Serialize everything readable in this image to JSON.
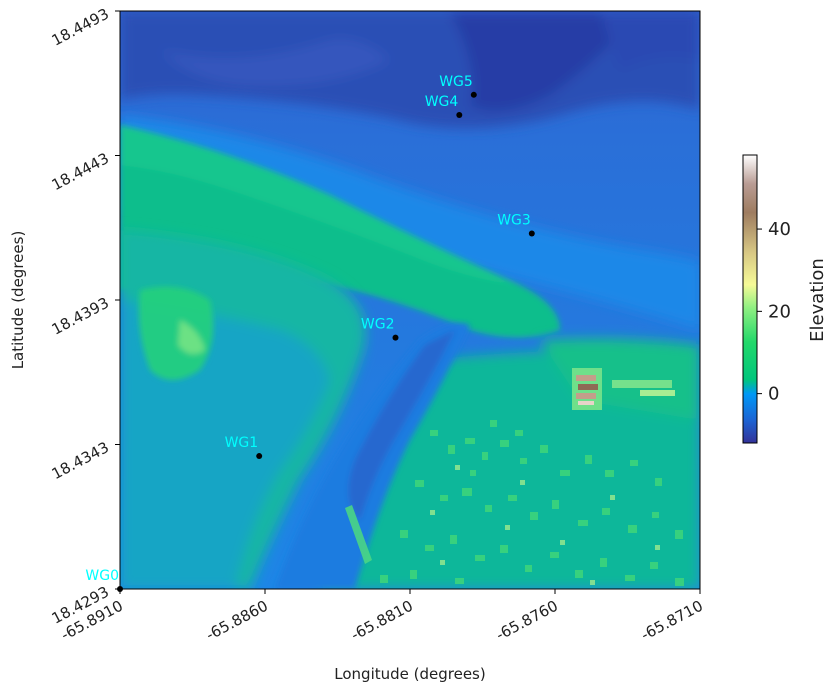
{
  "chart_data": {
    "type": "heatmap",
    "title": "",
    "xlabel": "Longitude (degrees)",
    "ylabel": "Latitude (degrees)",
    "xlim": [
      -65.891,
      -65.871
    ],
    "ylim": [
      18.4293,
      18.4493
    ],
    "x_ticks": [
      -65.891,
      -65.886,
      -65.881,
      -65.876,
      -65.871
    ],
    "y_ticks": [
      18.4293,
      18.4343,
      18.4393,
      18.4443,
      18.4493
    ],
    "x_tick_labels": [
      "-65.8910",
      "-65.8860",
      "-65.8810",
      "-65.8760",
      "-65.8710"
    ],
    "y_tick_labels": [
      "18.4293",
      "18.4343",
      "18.4393",
      "18.4443",
      "18.4493"
    ],
    "colorbar": {
      "label": "Elevation",
      "range": [
        -12,
        58
      ],
      "ticks": [
        0,
        20,
        40
      ],
      "tick_labels": [
        "0",
        "20",
        "40"
      ],
      "colormap": "terrain"
    },
    "gauges": [
      {
        "label": "WG0",
        "lon": -65.891,
        "lat": 18.4293
      },
      {
        "label": "WG1",
        "lon": -65.8862,
        "lat": 18.4339
      },
      {
        "label": "WG2",
        "lon": -65.8815,
        "lat": 18.438
      },
      {
        "label": "WG3",
        "lon": -65.8768,
        "lat": 18.4416
      },
      {
        "label": "WG4",
        "lon": -65.8793,
        "lat": 18.4457
      },
      {
        "label": "WG5",
        "lon": -65.8788,
        "lat": 18.4464
      }
    ],
    "marker_color": "#000000",
    "gauge_label_color": "#00ffff",
    "grid": false
  }
}
